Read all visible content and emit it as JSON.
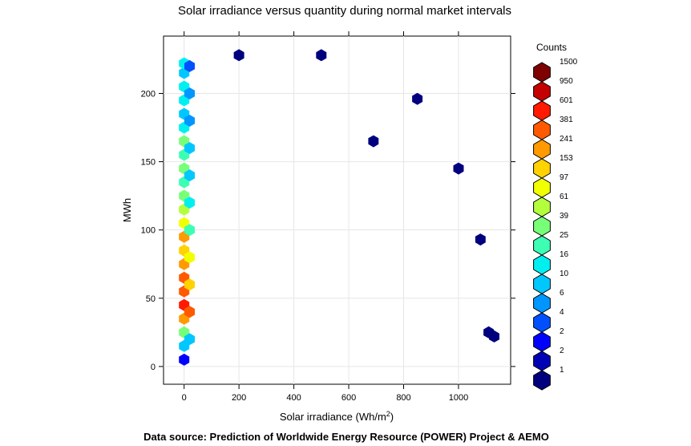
{
  "chart_data": {
    "type": "heatmap",
    "subtype": "hexbin",
    "title": "Solar irradiance versus quantity during normal market intervals",
    "xlabel": "Solar irradiance (Wh/m",
    "xlabel_superscript": "2",
    "xlabel_suffix": ")",
    "ylabel": "MWh",
    "xlim": [
      -75,
      1190
    ],
    "ylim": [
      -13,
      242
    ],
    "x_ticks": [
      0,
      200,
      400,
      600,
      800,
      1000
    ],
    "y_ticks": [
      0,
      50,
      100,
      150,
      200
    ],
    "grid": true,
    "legend": {
      "title": "Counts",
      "position": "right",
      "levels": [
        {
          "label": "1500",
          "color": "#7f0000"
        },
        {
          "label": "950",
          "color": "#c40000"
        },
        {
          "label": "601",
          "color": "#ff1a00"
        },
        {
          "label": "381",
          "color": "#ff5a00"
        },
        {
          "label": "241",
          "color": "#ff9a00"
        },
        {
          "label": "153",
          "color": "#ffd200"
        },
        {
          "label": "97",
          "color": "#f2ff00"
        },
        {
          "label": "61",
          "color": "#b4ff3c"
        },
        {
          "label": "39",
          "color": "#78ff78"
        },
        {
          "label": "25",
          "color": "#3cffb4"
        },
        {
          "label": "16",
          "color": "#00f0f0"
        },
        {
          "label": "10",
          "color": "#00c8ff"
        },
        {
          "label": "6",
          "color": "#0096ff"
        },
        {
          "label": "4",
          "color": "#0050ff"
        },
        {
          "label": "2",
          "color": "#0000ff"
        },
        {
          "label": "2",
          "color": "#0000b4"
        },
        {
          "label": "1",
          "color": "#00007f"
        }
      ]
    },
    "bins": [
      {
        "x": 0,
        "y": 5,
        "level": 3
      },
      {
        "x": 0,
        "y": 15,
        "level": 6
      },
      {
        "x": 0,
        "y": 25,
        "level": 9
      },
      {
        "x": 0,
        "y": 35,
        "level": 13
      },
      {
        "x": 0,
        "y": 45,
        "level": 15
      },
      {
        "x": 0,
        "y": 55,
        "level": 14
      },
      {
        "x": 0,
        "y": 65,
        "level": 14
      },
      {
        "x": 0,
        "y": 75,
        "level": 13
      },
      {
        "x": 0,
        "y": 85,
        "level": 12
      },
      {
        "x": 0,
        "y": 95,
        "level": 13
      },
      {
        "x": 0,
        "y": 105,
        "level": 11
      },
      {
        "x": 0,
        "y": 115,
        "level": 10
      },
      {
        "x": 0,
        "y": 125,
        "level": 9
      },
      {
        "x": 0,
        "y": 135,
        "level": 8
      },
      {
        "x": 0,
        "y": 145,
        "level": 9
      },
      {
        "x": 0,
        "y": 155,
        "level": 8
      },
      {
        "x": 0,
        "y": 165,
        "level": 9
      },
      {
        "x": 0,
        "y": 175,
        "level": 7
      },
      {
        "x": 0,
        "y": 185,
        "level": 6
      },
      {
        "x": 0,
        "y": 195,
        "level": 7
      },
      {
        "x": 0,
        "y": 205,
        "level": 7
      },
      {
        "x": 0,
        "y": 215,
        "level": 6
      },
      {
        "x": 0,
        "y": 222,
        "level": 7
      },
      {
        "x": 20,
        "y": 20,
        "level": 6
      },
      {
        "x": 20,
        "y": 40,
        "level": 14
      },
      {
        "x": 20,
        "y": 60,
        "level": 12
      },
      {
        "x": 20,
        "y": 80,
        "level": 11
      },
      {
        "x": 20,
        "y": 100,
        "level": 8
      },
      {
        "x": 20,
        "y": 120,
        "level": 7
      },
      {
        "x": 20,
        "y": 140,
        "level": 6
      },
      {
        "x": 20,
        "y": 160,
        "level": 6
      },
      {
        "x": 20,
        "y": 180,
        "level": 5
      },
      {
        "x": 20,
        "y": 200,
        "level": 5
      },
      {
        "x": 20,
        "y": 220,
        "level": 4
      },
      {
        "x": 850,
        "y": 196,
        "level": 1
      },
      {
        "x": 690,
        "y": 165,
        "level": 1
      },
      {
        "x": 1000,
        "y": 145,
        "level": 1
      },
      {
        "x": 1080,
        "y": 93,
        "level": 1
      },
      {
        "x": 200,
        "y": 228,
        "level": 1
      },
      {
        "x": 500,
        "y": 228,
        "level": 1
      },
      {
        "x": 1130,
        "y": 22,
        "level": 1
      },
      {
        "x": 1110,
        "y": 25,
        "level": 1
      }
    ]
  },
  "caption": "Data source: Prediction of Worldwide Energy Resource (POWER) Project & AEMO"
}
